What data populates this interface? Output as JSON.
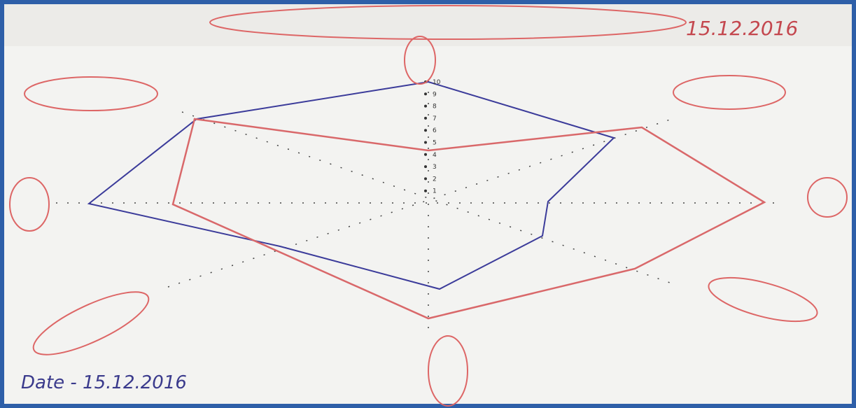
{
  "header": {
    "date": "15.12.2016"
  },
  "footer": {
    "date": "Date - 15.12.2016"
  },
  "axis_ticks": [
    1,
    2,
    3,
    4,
    5,
    6,
    7,
    8,
    9,
    10
  ]
}
